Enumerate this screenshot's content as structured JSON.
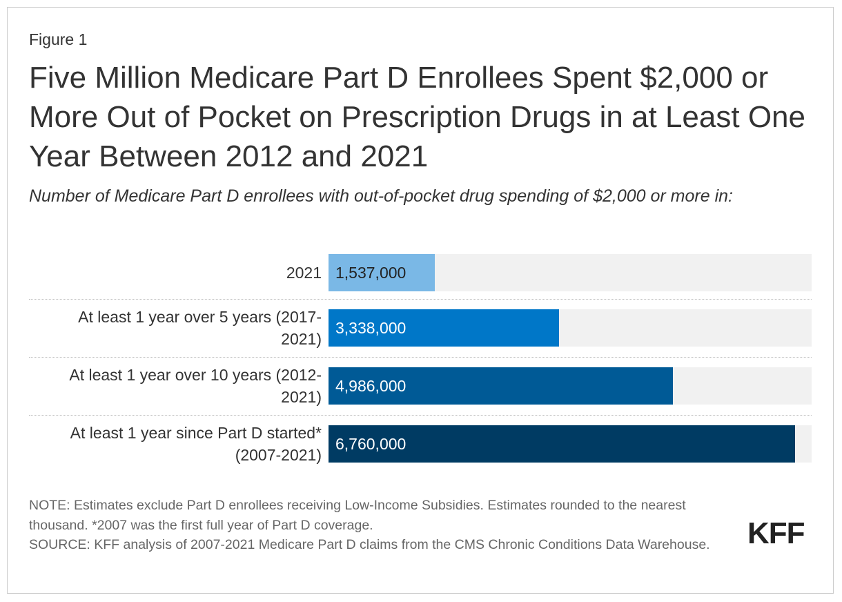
{
  "figure_label": "Figure 1",
  "title": "Five Million Medicare Part D Enrollees Spent $2,000 or More Out of Pocket on Prescription Drugs in at Least One Year Between 2012 and 2021",
  "subtitle": "Number of Medicare Part D enrollees with out-of-pocket drug spending of $2,000 or more in:",
  "chart_data": {
    "type": "bar",
    "orientation": "horizontal",
    "title": "Five Million Medicare Part D Enrollees Spent $2,000 or More Out of Pocket on Prescription Drugs in at Least One Year Between 2012 and 2021",
    "xlabel": "",
    "ylabel": "",
    "xlim": [
      0,
      7000000
    ],
    "categories": [
      "2021",
      "At least 1 year over 5 years (2017-2021)",
      "At least 1 year over 10 years (2012-2021)",
      "At least 1 year since Part D started* (2007-2021)"
    ],
    "category_lines": [
      [
        "2021"
      ],
      [
        "At least 1 year over 5 years (2017-",
        "2021)"
      ],
      [
        "At least 1 year over 10 years (2012-",
        "2021)"
      ],
      [
        "At least 1 year since Part D started*",
        "(2007-2021)"
      ]
    ],
    "values": [
      1537000,
      3338000,
      4986000,
      6760000
    ],
    "value_labels": [
      "1,537,000",
      "3,338,000",
      "4,986,000",
      "6,760,000"
    ],
    "colors": [
      "#7ab8e6",
      "#0077c8",
      "#005a96",
      "#003b63"
    ],
    "label_colors": [
      "#222222",
      "#ffffff",
      "#ffffff",
      "#ffffff"
    ],
    "track_color": "#f1f1f1"
  },
  "note": "NOTE: Estimates exclude Part D enrollees receiving Low-Income Subsidies. Estimates rounded to the nearest thousand. *2007 was the first full year of Part D coverage.",
  "source": "SOURCE: KFF analysis of 2007-2021 Medicare Part D claims from the CMS Chronic Conditions Data Warehouse.",
  "logo_text": "KFF"
}
